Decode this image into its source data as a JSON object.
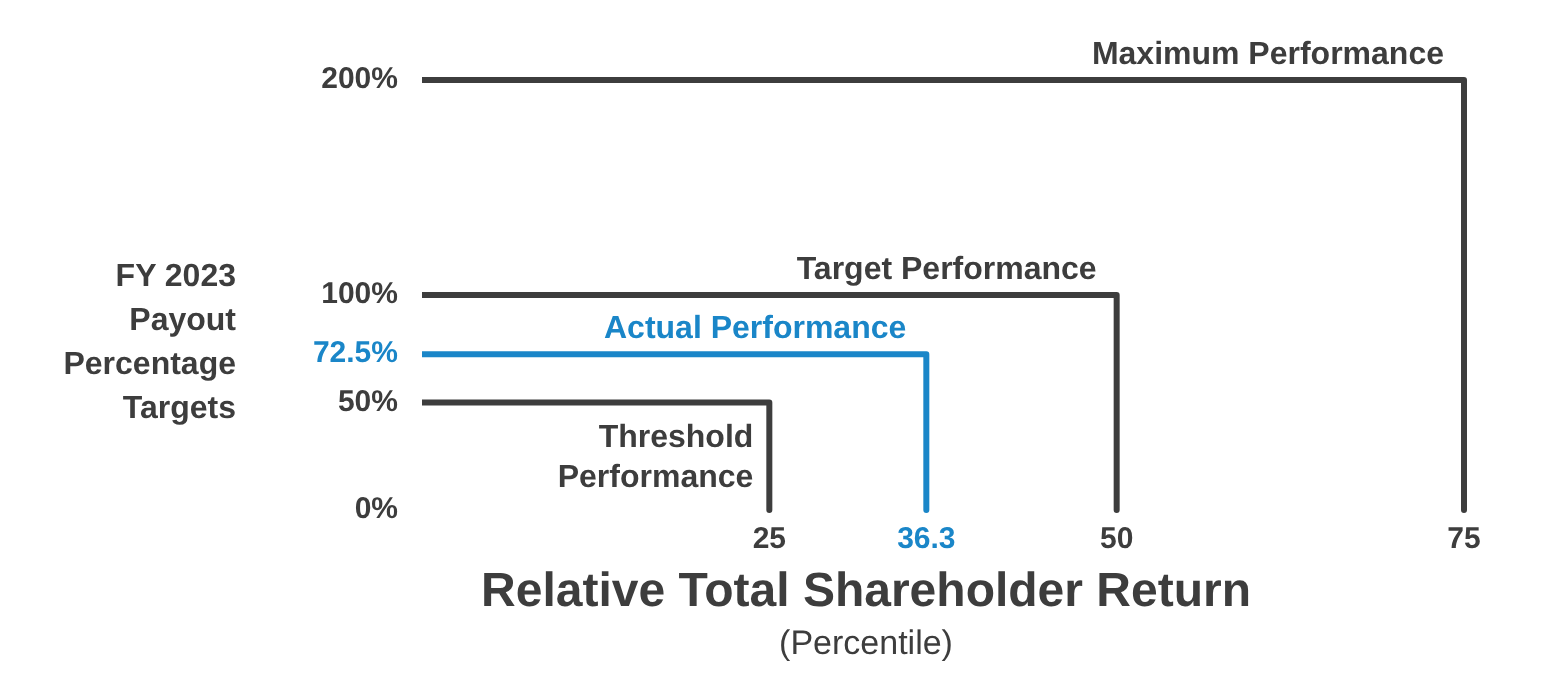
{
  "chart_data": {
    "type": "line",
    "xlabel": "Relative Total Shareholder Return\n(Percentile)",
    "ylabel": "FY 2023\nPayout\nPercentage\nTargets",
    "series": [
      {
        "name": "Threshold Performance",
        "color": "#3d3d3d",
        "x": [
          0,
          25,
          25
        ],
        "values": [
          50,
          50,
          0
        ]
      },
      {
        "name": "Actual Performance",
        "color": "#1a86c8",
        "x": [
          0,
          36.3,
          36.3
        ],
        "values": [
          72.5,
          72.5,
          0
        ]
      },
      {
        "name": "Target Performance",
        "color": "#3d3d3d",
        "x": [
          0,
          50,
          50
        ],
        "values": [
          100,
          100,
          0
        ]
      },
      {
        "name": "Maximum Performance",
        "color": "#3d3d3d",
        "x": [
          0,
          75,
          75
        ],
        "values": [
          200,
          200,
          0
        ]
      }
    ],
    "xlim": [
      0,
      75
    ],
    "xticks": [
      25,
      36.3,
      50,
      75
    ],
    "ylim": [
      0,
      200
    ],
    "yticks": [
      {
        "value": 0,
        "label": "0%"
      },
      {
        "value": 50,
        "label": "50%"
      },
      {
        "value": 72.5,
        "label": "72.5%"
      },
      {
        "value": 100,
        "label": "100%"
      },
      {
        "value": 200,
        "label": "200%"
      }
    ],
    "grid": false,
    "legend": false,
    "marker": "none",
    "line_style": "solid"
  }
}
